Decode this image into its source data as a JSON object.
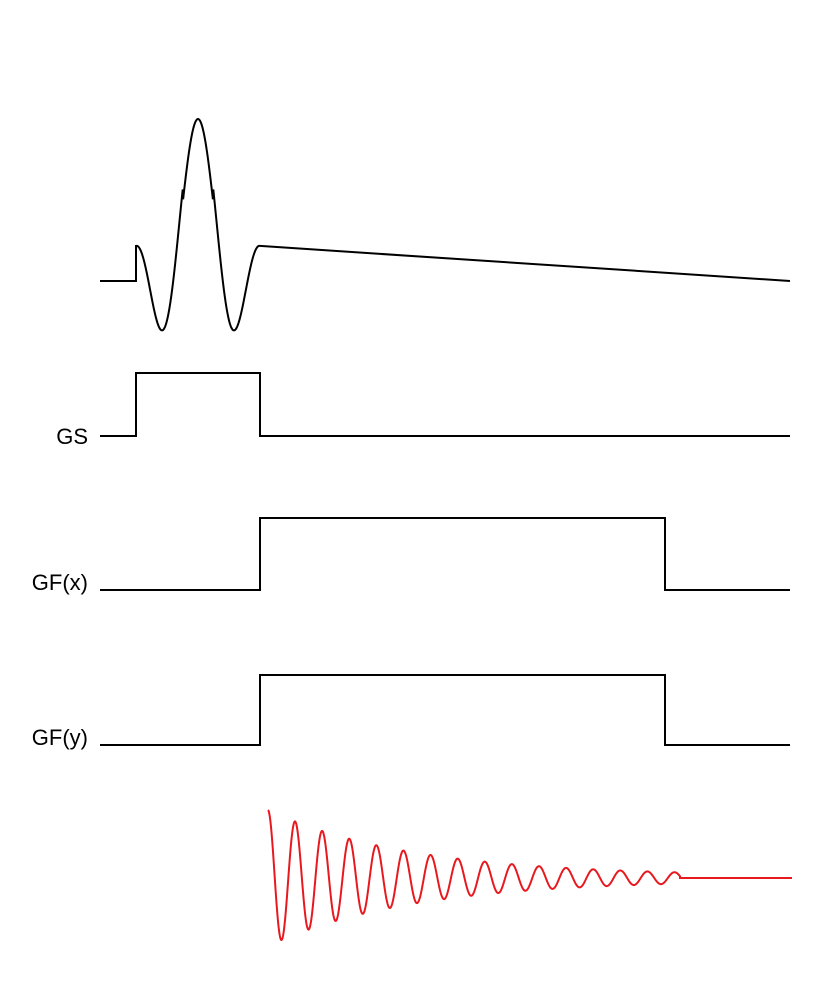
{
  "channels": [
    {
      "id": "rf",
      "label": "",
      "color": "#000000"
    },
    {
      "id": "gs",
      "label": "GS",
      "color": "#000000"
    },
    {
      "id": "gfx",
      "label": "GF(x)",
      "color": "#000000"
    },
    {
      "id": "gfy",
      "label": "GF(y)",
      "color": "#000000"
    },
    {
      "id": "signal",
      "label": "",
      "color": "#e8191e"
    }
  ]
}
